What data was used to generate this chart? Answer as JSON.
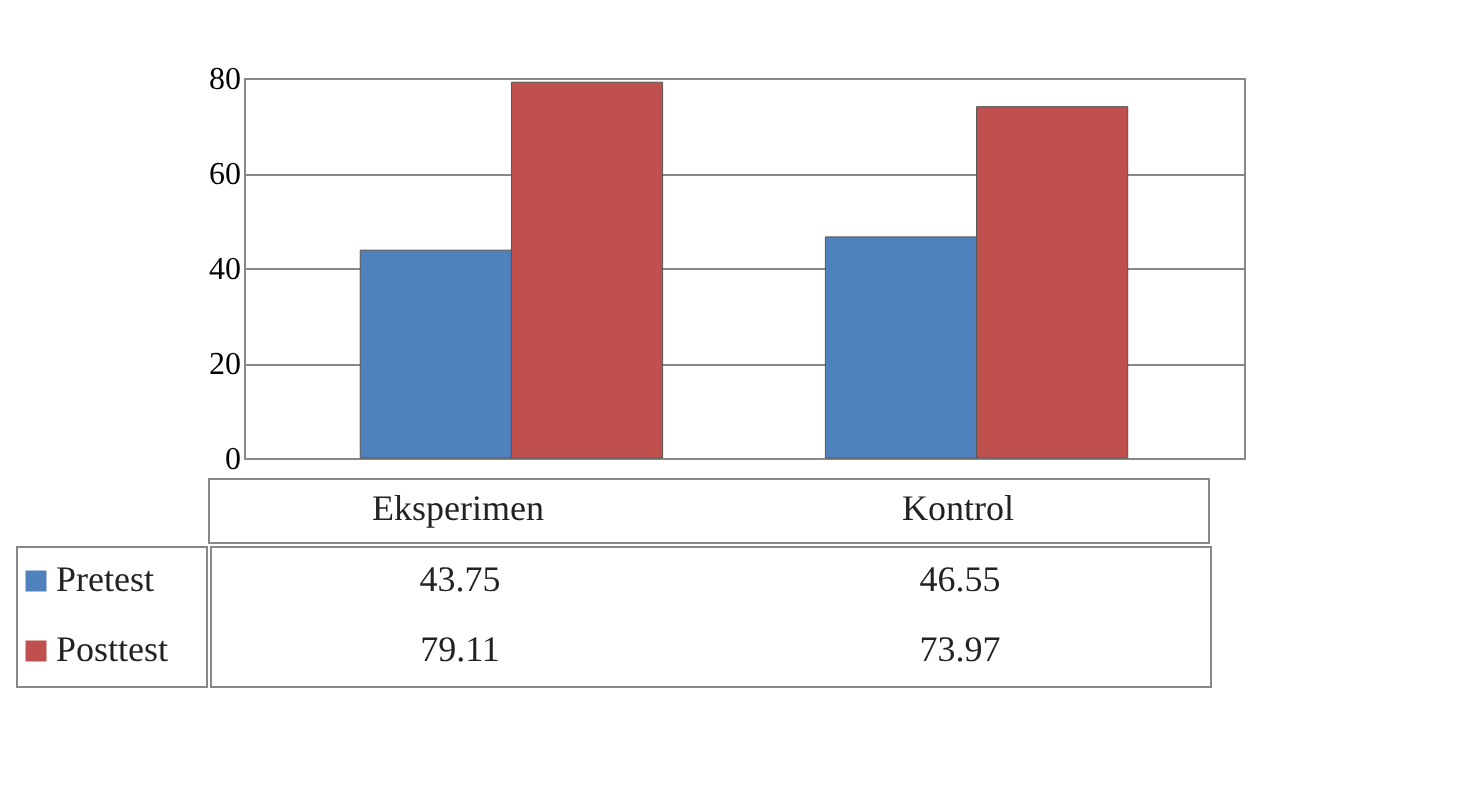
{
  "chart_data": {
    "type": "bar",
    "categories": [
      "Eksperimen",
      "Kontrol"
    ],
    "series": [
      {
        "name": "Pretest",
        "color": "#4f81bd",
        "values": [
          43.75,
          46.55
        ]
      },
      {
        "name": "Posttest",
        "color": "#c0504d",
        "values": [
          79.11,
          73.97
        ]
      }
    ],
    "ylim": [
      0,
      80
    ],
    "yticks": [
      0,
      20,
      40,
      60,
      80
    ],
    "grid": "y",
    "legend": "bottom",
    "data_labels": true
  }
}
